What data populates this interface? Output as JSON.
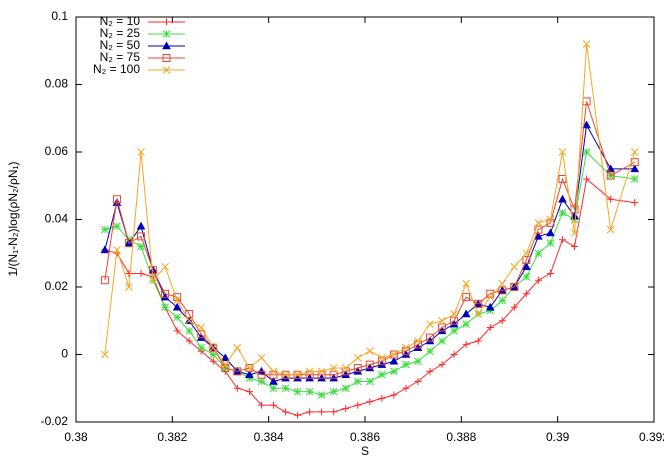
{
  "chart_data": {
    "type": "line",
    "xlabel": "S",
    "ylabel": "1/(N₁-N₂)log(ρN₂/ρN₁)",
    "xlim": [
      0.38,
      0.392
    ],
    "xticks": [
      0.38,
      0.382,
      0.384,
      0.386,
      0.388,
      0.39,
      0.392
    ],
    "ylim": [
      -0.02,
      0.1
    ],
    "yticks": [
      -0.02,
      0,
      0.02,
      0.04,
      0.06,
      0.08,
      0.1
    ],
    "legend": "upper left",
    "x": [
      0.3806,
      0.38085,
      0.3811,
      0.38135,
      0.3816,
      0.38185,
      0.3821,
      0.38235,
      0.3826,
      0.38285,
      0.3831,
      0.38335,
      0.3836,
      0.38385,
      0.3841,
      0.38435,
      0.3846,
      0.38485,
      0.3851,
      0.38535,
      0.3856,
      0.38585,
      0.3861,
      0.38635,
      0.3866,
      0.38685,
      0.3871,
      0.38735,
      0.3876,
      0.38785,
      0.3881,
      0.38835,
      0.3886,
      0.38885,
      0.3891,
      0.38935,
      0.3896,
      0.38985,
      0.3901,
      0.39035,
      0.3906,
      0.3911,
      0.3916
    ],
    "series": [
      {
        "name": "N₂ = 10",
        "color": "#ff2a2a",
        "marker": "plus",
        "values": [
          0.031,
          0.03,
          0.024,
          0.024,
          0.023,
          0.014,
          0.007,
          0.004,
          0.001,
          -0.002,
          -0.005,
          -0.01,
          -0.011,
          -0.015,
          -0.015,
          -0.017,
          -0.018,
          -0.017,
          -0.017,
          -0.017,
          -0.016,
          -0.015,
          -0.014,
          -0.013,
          -0.012,
          -0.01,
          -0.008,
          -0.005,
          -0.003,
          0.0,
          0.003,
          0.004,
          0.008,
          0.01,
          0.014,
          0.018,
          0.022,
          0.024,
          0.034,
          0.032,
          0.052,
          0.046,
          0.045
        ]
      },
      {
        "name": "N₂ = 25",
        "color": "#40dd40",
        "marker": "star",
        "values": [
          0.037,
          0.038,
          0.034,
          0.032,
          0.022,
          0.014,
          0.011,
          0.007,
          0.002,
          0.0,
          -0.004,
          -0.005,
          -0.007,
          -0.008,
          -0.01,
          -0.01,
          -0.011,
          -0.011,
          -0.012,
          -0.011,
          -0.01,
          -0.008,
          -0.008,
          -0.006,
          -0.005,
          -0.003,
          -0.002,
          0.001,
          0.004,
          0.007,
          0.009,
          0.012,
          0.013,
          0.016,
          0.02,
          0.023,
          0.03,
          0.033,
          0.042,
          0.04,
          0.06,
          0.053,
          0.052
        ]
      },
      {
        "name": "N₂ = 50",
        "color": "#0000b8",
        "marker": "triangle",
        "values": [
          0.031,
          0.045,
          0.033,
          0.038,
          0.025,
          0.017,
          0.014,
          0.01,
          0.005,
          0.002,
          -0.001,
          -0.005,
          -0.006,
          -0.005,
          -0.008,
          -0.007,
          -0.007,
          -0.007,
          -0.007,
          -0.007,
          -0.006,
          -0.005,
          -0.004,
          -0.003,
          -0.002,
          0.0,
          0.002,
          0.004,
          0.007,
          0.009,
          0.012,
          0.015,
          0.014,
          0.019,
          0.02,
          0.026,
          0.035,
          0.036,
          0.046,
          0.041,
          0.068,
          0.055,
          0.055
        ]
      },
      {
        "name": "N₂ = 75",
        "color": "#e8482e",
        "marker": "square",
        "values": [
          0.022,
          0.046,
          0.033,
          0.035,
          0.025,
          0.018,
          0.017,
          0.012,
          0.006,
          0.002,
          -0.004,
          -0.005,
          -0.004,
          -0.006,
          -0.006,
          -0.006,
          -0.006,
          -0.006,
          -0.006,
          -0.006,
          -0.005,
          -0.004,
          -0.003,
          -0.002,
          0.0,
          0.001,
          0.003,
          0.005,
          0.008,
          0.01,
          0.017,
          0.015,
          0.018,
          0.019,
          0.02,
          0.028,
          0.037,
          0.039,
          0.052,
          0.043,
          0.075,
          0.053,
          0.057
        ]
      },
      {
        "name": "N₂ = 100",
        "color": "#f5a623",
        "marker": "cross",
        "values": [
          0.0,
          0.031,
          0.02,
          0.06,
          0.022,
          0.026,
          0.016,
          0.01,
          0.008,
          0.002,
          -0.003,
          0.002,
          -0.004,
          -0.001,
          -0.005,
          -0.006,
          -0.006,
          -0.005,
          -0.005,
          -0.004,
          -0.004,
          -0.001,
          0.001,
          -0.001,
          0.0,
          0.002,
          0.004,
          0.009,
          0.01,
          0.012,
          0.021,
          0.012,
          0.017,
          0.021,
          0.026,
          0.03,
          0.039,
          0.04,
          0.06,
          0.036,
          0.092,
          0.037,
          0.06
        ]
      }
    ]
  }
}
